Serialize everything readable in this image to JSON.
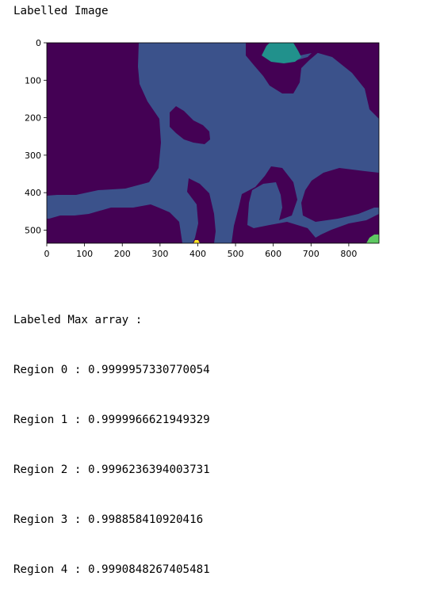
{
  "output": {
    "title": "Labelled Image",
    "max_header": "Labeled Max array :",
    "regions": [
      "Region 0 : 0.9999957330770054",
      "Region 1 : 0.9999966621949329",
      "Region 2 : 0.9996236394003731",
      "Region 3 : 0.998858410920416",
      "Region 4 : 0.9990848267405481"
    ]
  },
  "chart_data": {
    "type": "heatmap",
    "title": "",
    "xlabel": "",
    "ylabel": "",
    "xlim": [
      0,
      880
    ],
    "ylim": [
      535,
      0
    ],
    "x_ticks": [
      0,
      100,
      200,
      300,
      400,
      500,
      600,
      700,
      800
    ],
    "y_ticks": [
      0,
      100,
      200,
      300,
      400,
      500
    ],
    "grid": false,
    "colormap": "viridis",
    "colors": {
      "label_0": "#440154",
      "label_1": "#3b528b",
      "label_2": "#21918c",
      "label_3": "#5ec962",
      "label_4": "#fde725"
    }
  }
}
